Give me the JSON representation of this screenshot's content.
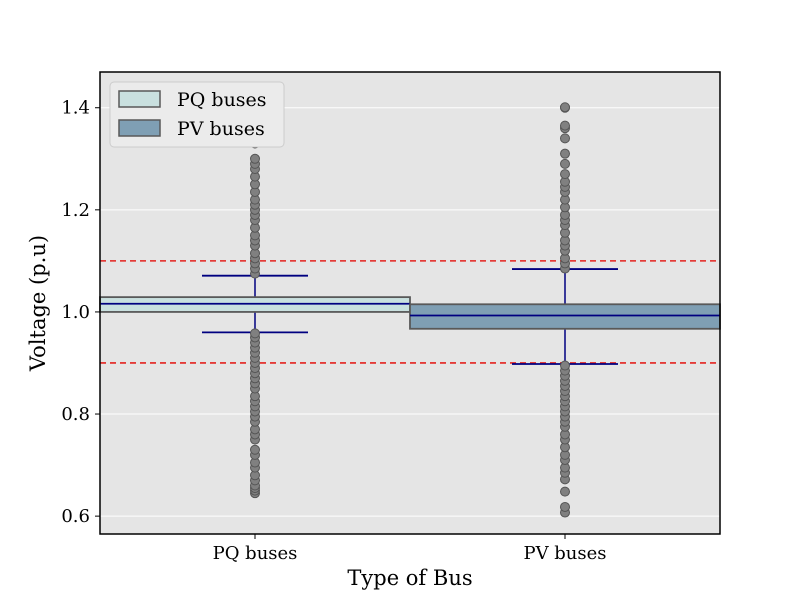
{
  "chart_data": {
    "type": "boxplot",
    "xlabel": "Type of Bus",
    "ylabel": "Voltage (p.u)",
    "ylim": [
      0.565,
      1.47
    ],
    "yticks": [
      "0.6",
      "0.8",
      "1.0",
      "1.2",
      "1.4"
    ],
    "grid": true,
    "legend_position": "top-left",
    "reference_lines": [
      0.9,
      1.1
    ],
    "categories": [
      "PQ buses",
      "PV buses"
    ],
    "series": [
      {
        "name": "PQ buses",
        "q1": 1.0,
        "median": 1.016,
        "q3": 1.029,
        "whisker_low": 0.96,
        "whisker_high": 1.071,
        "outliers": [
          0.645,
          0.65,
          0.655,
          0.66,
          0.67,
          0.68,
          0.695,
          0.705,
          0.72,
          0.73,
          0.75,
          0.76,
          0.77,
          0.785,
          0.795,
          0.805,
          0.815,
          0.825,
          0.835,
          0.85,
          0.86,
          0.87,
          0.88,
          0.89,
          0.9,
          0.91,
          0.92,
          0.93,
          0.94,
          0.95,
          0.958,
          1.075,
          1.085,
          1.095,
          1.105,
          1.115,
          1.13,
          1.14,
          1.15,
          1.165,
          1.18,
          1.19,
          1.2,
          1.21,
          1.22,
          1.235,
          1.25,
          1.265,
          1.28,
          1.29,
          1.3,
          1.33,
          1.35,
          1.37,
          1.39,
          1.41,
          1.425
        ]
      },
      {
        "name": "PV buses",
        "q1": 0.967,
        "median": 0.993,
        "q3": 1.015,
        "whisker_low": 0.898,
        "whisker_high": 1.084,
        "outliers": [
          0.607,
          0.618,
          0.648,
          0.672,
          0.685,
          0.695,
          0.71,
          0.72,
          0.735,
          0.75,
          0.76,
          0.775,
          0.785,
          0.795,
          0.805,
          0.815,
          0.825,
          0.835,
          0.845,
          0.855,
          0.865,
          0.875,
          0.885,
          0.895,
          1.085,
          1.095,
          1.105,
          1.12,
          1.13,
          1.14,
          1.155,
          1.17,
          1.18,
          1.19,
          1.205,
          1.22,
          1.235,
          1.245,
          1.255,
          1.27,
          1.29,
          1.31,
          1.34,
          1.36,
          1.365,
          1.4,
          1.401
        ]
      }
    ]
  },
  "colors": {
    "plot_background": "#e5e5e5",
    "grid": "#ffffff",
    "pq_box": "#c9e0df",
    "pv_box": "#7f9fb4",
    "box_edge": "#595959",
    "median": "#000080",
    "whisker": "#000080",
    "outlier_fill": "#808080",
    "outlier_edge": "#555555",
    "reference_line": "#e3231f",
    "legend_background": "#ebebeb"
  }
}
